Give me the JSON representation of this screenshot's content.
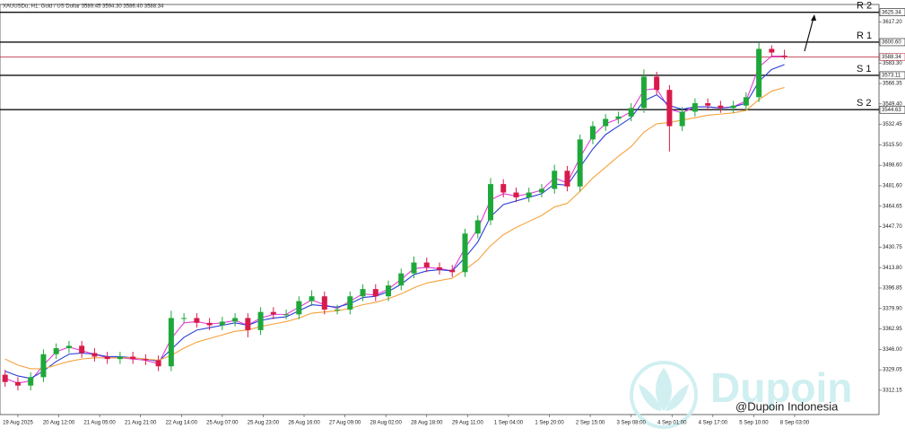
{
  "chart_data": {
    "type": "candlestick",
    "title": "XAUUSDu, H1: Gold / US Dollar  3589.45 3594.30 3586.40 3588.34",
    "watermark": "Dupoin",
    "credit": "@Dupoin Indonesia",
    "up_color": "#1fa83a",
    "down_color": "#d81b4a",
    "x": [
      0,
      5,
      10,
      15,
      20,
      25,
      30,
      35,
      40,
      45,
      50,
      55,
      60,
      65,
      70,
      75,
      80,
      85,
      90,
      95,
      100,
      105,
      110,
      115,
      120,
      125,
      130,
      135,
      140,
      145,
      150,
      155,
      160,
      165,
      170,
      175,
      180,
      185,
      190,
      195,
      200,
      205,
      210,
      215,
      220,
      225,
      230,
      235,
      240,
      245,
      250,
      255,
      260,
      265,
      270,
      275,
      280,
      285,
      290,
      295,
      300,
      305
    ],
    "open": [
      3325,
      3319,
      3316,
      3323,
      3342,
      3347,
      3349,
      3343,
      3340,
      3338,
      3340,
      3338,
      3337,
      3332,
      3372,
      3372,
      3368,
      3366,
      3369,
      3372,
      3362,
      3377,
      3375,
      3375,
      3386,
      3390,
      3379,
      3379,
      3390,
      3396,
      3390,
      3399,
      3409,
      3418,
      3414,
      3412,
      3410,
      3442,
      3453,
      3483,
      3476,
      3472,
      3476,
      3479,
      3494,
      3481,
      3520,
      3531,
      3537,
      3539,
      3546,
      3572,
      3561,
      3531,
      3543,
      3550,
      3548,
      3546,
      3548,
      3555,
      3595,
      3589.45
    ],
    "high": [
      3329,
      3323,
      3327,
      3346,
      3351,
      3353,
      3353,
      3347,
      3344,
      3344,
      3344,
      3342,
      3341,
      3378,
      3376,
      3376,
      3372,
      3373,
      3376,
      3376,
      3381,
      3381,
      3379,
      3390,
      3395,
      3394,
      3383,
      3394,
      3400,
      3400,
      3403,
      3413,
      3423,
      3422,
      3418,
      3416,
      3446,
      3457,
      3488,
      3487,
      3480,
      3480,
      3483,
      3499,
      3498,
      3524,
      3535,
      3541,
      3543,
      3550,
      3578,
      3576,
      3565,
      3547,
      3554,
      3554,
      3552,
      3552,
      3559,
      3600,
      3598,
      3594.3
    ],
    "low": [
      3315,
      3312,
      3312,
      3319,
      3338,
      3343,
      3339,
      3336,
      3334,
      3334,
      3334,
      3333,
      3328,
      3328,
      3368,
      3364,
      3362,
      3362,
      3365,
      3356,
      3358,
      3371,
      3371,
      3371,
      3382,
      3375,
      3375,
      3375,
      3386,
      3386,
      3386,
      3395,
      3405,
      3410,
      3408,
      3406,
      3406,
      3438,
      3449,
      3472,
      3468,
      3468,
      3472,
      3475,
      3477,
      3477,
      3516,
      3527,
      3533,
      3535,
      3542,
      3557,
      3510,
      3527,
      3539,
      3544,
      3542,
      3542,
      3544,
      3551,
      3588,
      3586.4
    ],
    "close": [
      3319,
      3316,
      3323,
      3342,
      3347,
      3349,
      3343,
      3340,
      3338,
      3340,
      3338,
      3337,
      3332,
      3372,
      3372,
      3368,
      3366,
      3369,
      3372,
      3362,
      3377,
      3375,
      3375,
      3386,
      3390,
      3379,
      3379,
      3390,
      3396,
      3390,
      3399,
      3409,
      3418,
      3414,
      3412,
      3410,
      3442,
      3453,
      3483,
      3476,
      3472,
      3476,
      3479,
      3494,
      3481,
      3520,
      3531,
      3537,
      3539,
      3546,
      3572,
      3561,
      3531,
      3543,
      3550,
      3548,
      3546,
      3548,
      3555,
      3595,
      3592,
      3588.34
    ],
    "lines": [
      {
        "color": "#e83ad8",
        "values": [
          3322,
          3318,
          3320,
          3333,
          3344,
          3348,
          3345,
          3342,
          3339,
          3339,
          3338,
          3337,
          3334,
          3355,
          3368,
          3369,
          3367,
          3368,
          3370,
          3366,
          3372,
          3375,
          3375,
          3381,
          3387,
          3383,
          3380,
          3386,
          3392,
          3391,
          3396,
          3404,
          3413,
          3414,
          3413,
          3411,
          3430,
          3446,
          3470,
          3475,
          3473,
          3475,
          3478,
          3488,
          3484,
          3505,
          3523,
          3533,
          3537,
          3543,
          3561,
          3562,
          3545,
          3542,
          3547,
          3547,
          3546,
          3547,
          3552,
          3580,
          3589,
          3589
        ]
      },
      {
        "color": "#2b3fd6",
        "values": [
          3328,
          3324,
          3322,
          3328,
          3336,
          3342,
          3343,
          3342,
          3340,
          3340,
          3339,
          3338,
          3336,
          3346,
          3356,
          3362,
          3364,
          3366,
          3368,
          3366,
          3370,
          3372,
          3373,
          3378,
          3383,
          3382,
          3381,
          3384,
          3389,
          3390,
          3394,
          3400,
          3408,
          3411,
          3412,
          3411,
          3422,
          3435,
          3456,
          3466,
          3469,
          3472,
          3475,
          3483,
          3482,
          3497,
          3512,
          3524,
          3531,
          3538,
          3552,
          3557,
          3548,
          3545,
          3547,
          3547,
          3546,
          3547,
          3550,
          3568,
          3578,
          3582
        ]
      },
      {
        "color": "#f5a23c",
        "values": [
          3338,
          3333,
          3330,
          3330,
          3333,
          3336,
          3338,
          3339,
          3339,
          3339,
          3339,
          3338,
          3337,
          3341,
          3347,
          3352,
          3355,
          3358,
          3361,
          3362,
          3365,
          3367,
          3369,
          3372,
          3376,
          3377,
          3378,
          3380,
          3383,
          3385,
          3388,
          3392,
          3397,
          3401,
          3403,
          3405,
          3412,
          3420,
          3432,
          3441,
          3447,
          3452,
          3457,
          3464,
          3467,
          3477,
          3488,
          3497,
          3506,
          3514,
          3526,
          3533,
          3534,
          3536,
          3538,
          3540,
          3541,
          3542,
          3544,
          3553,
          3560,
          3563
        ]
      }
    ],
    "levels": [
      {
        "label": "R 2",
        "value": 3625.34,
        "price_label": "3625.34"
      },
      {
        "label": "R 1",
        "value": 3600.6,
        "price_label": "3600.60"
      },
      {
        "label": "S 1",
        "value": 3573.11,
        "price_label": "3573.11"
      },
      {
        "label": "S 2",
        "value": 3544.63,
        "price_label": "3544.63"
      }
    ],
    "price_line": {
      "value": 3588.34,
      "label": "3588.34",
      "color": "#c0394f"
    },
    "xlim": [
      -2,
      342
    ],
    "ylim": [
      3292,
      3631.8
    ],
    "xticks": [
      {
        "value": 5,
        "label": "19 Aug 2025"
      },
      {
        "value": 21,
        "label": "20 Aug 12:00"
      },
      {
        "value": 37,
        "label": "21 Aug 05:00"
      },
      {
        "value": 53,
        "label": "21 Aug 21:00"
      },
      {
        "value": 69,
        "label": "22 Aug 14:00"
      },
      {
        "value": 85,
        "label": "25 Aug 07:00"
      },
      {
        "value": 101,
        "label": "25 Aug 23:00"
      },
      {
        "value": 117,
        "label": "26 Aug 16:00"
      },
      {
        "value": 133,
        "label": "27 Aug 09:00"
      },
      {
        "value": 149,
        "label": "28 Aug 02:00"
      },
      {
        "value": 165,
        "label": "28 Aug 18:00"
      },
      {
        "value": 181,
        "label": "29 Aug 11:00"
      },
      {
        "value": 197,
        "label": "1 Sep 04:00"
      },
      {
        "value": 213,
        "label": "1 Sep 20:00"
      },
      {
        "value": 229,
        "label": "2 Sep 15:00"
      },
      {
        "value": 245,
        "label": "3 Sep 08:00"
      },
      {
        "value": 261,
        "label": "4 Sep 01:00"
      },
      {
        "value": 277,
        "label": "4 Sep 17:00"
      },
      {
        "value": 293,
        "label": "5 Sep 10:00"
      },
      {
        "value": 309,
        "label": "8 Sep 03:00"
      }
    ],
    "yticks": [
      {
        "value": 3312.15,
        "label": "3312.15"
      },
      {
        "value": 3329.05,
        "label": "3329.05"
      },
      {
        "value": 3346,
        "label": "3346.00"
      },
      {
        "value": 3362.95,
        "label": "3362.95"
      },
      {
        "value": 3379.9,
        "label": "3379.90"
      },
      {
        "value": 3396.85,
        "label": "3396.85"
      },
      {
        "value": 3413.8,
        "label": "3413.80"
      },
      {
        "value": 3430.75,
        "label": "3430.75"
      },
      {
        "value": 3447.7,
        "label": "3447.70"
      },
      {
        "value": 3464.65,
        "label": "3464.65"
      },
      {
        "value": 3481.6,
        "label": "3481.60"
      },
      {
        "value": 3498.6,
        "label": "3498.60"
      },
      {
        "value": 3515.5,
        "label": "3515.50"
      },
      {
        "value": 3532.45,
        "label": "3532.45"
      },
      {
        "value": 3549.4,
        "label": "3549.40"
      },
      {
        "value": 3566.35,
        "label": "3566.35"
      },
      {
        "value": 3583.3,
        "label": "3583.30"
      },
      {
        "value": 3617.2,
        "label": "3617.20"
      }
    ]
  }
}
